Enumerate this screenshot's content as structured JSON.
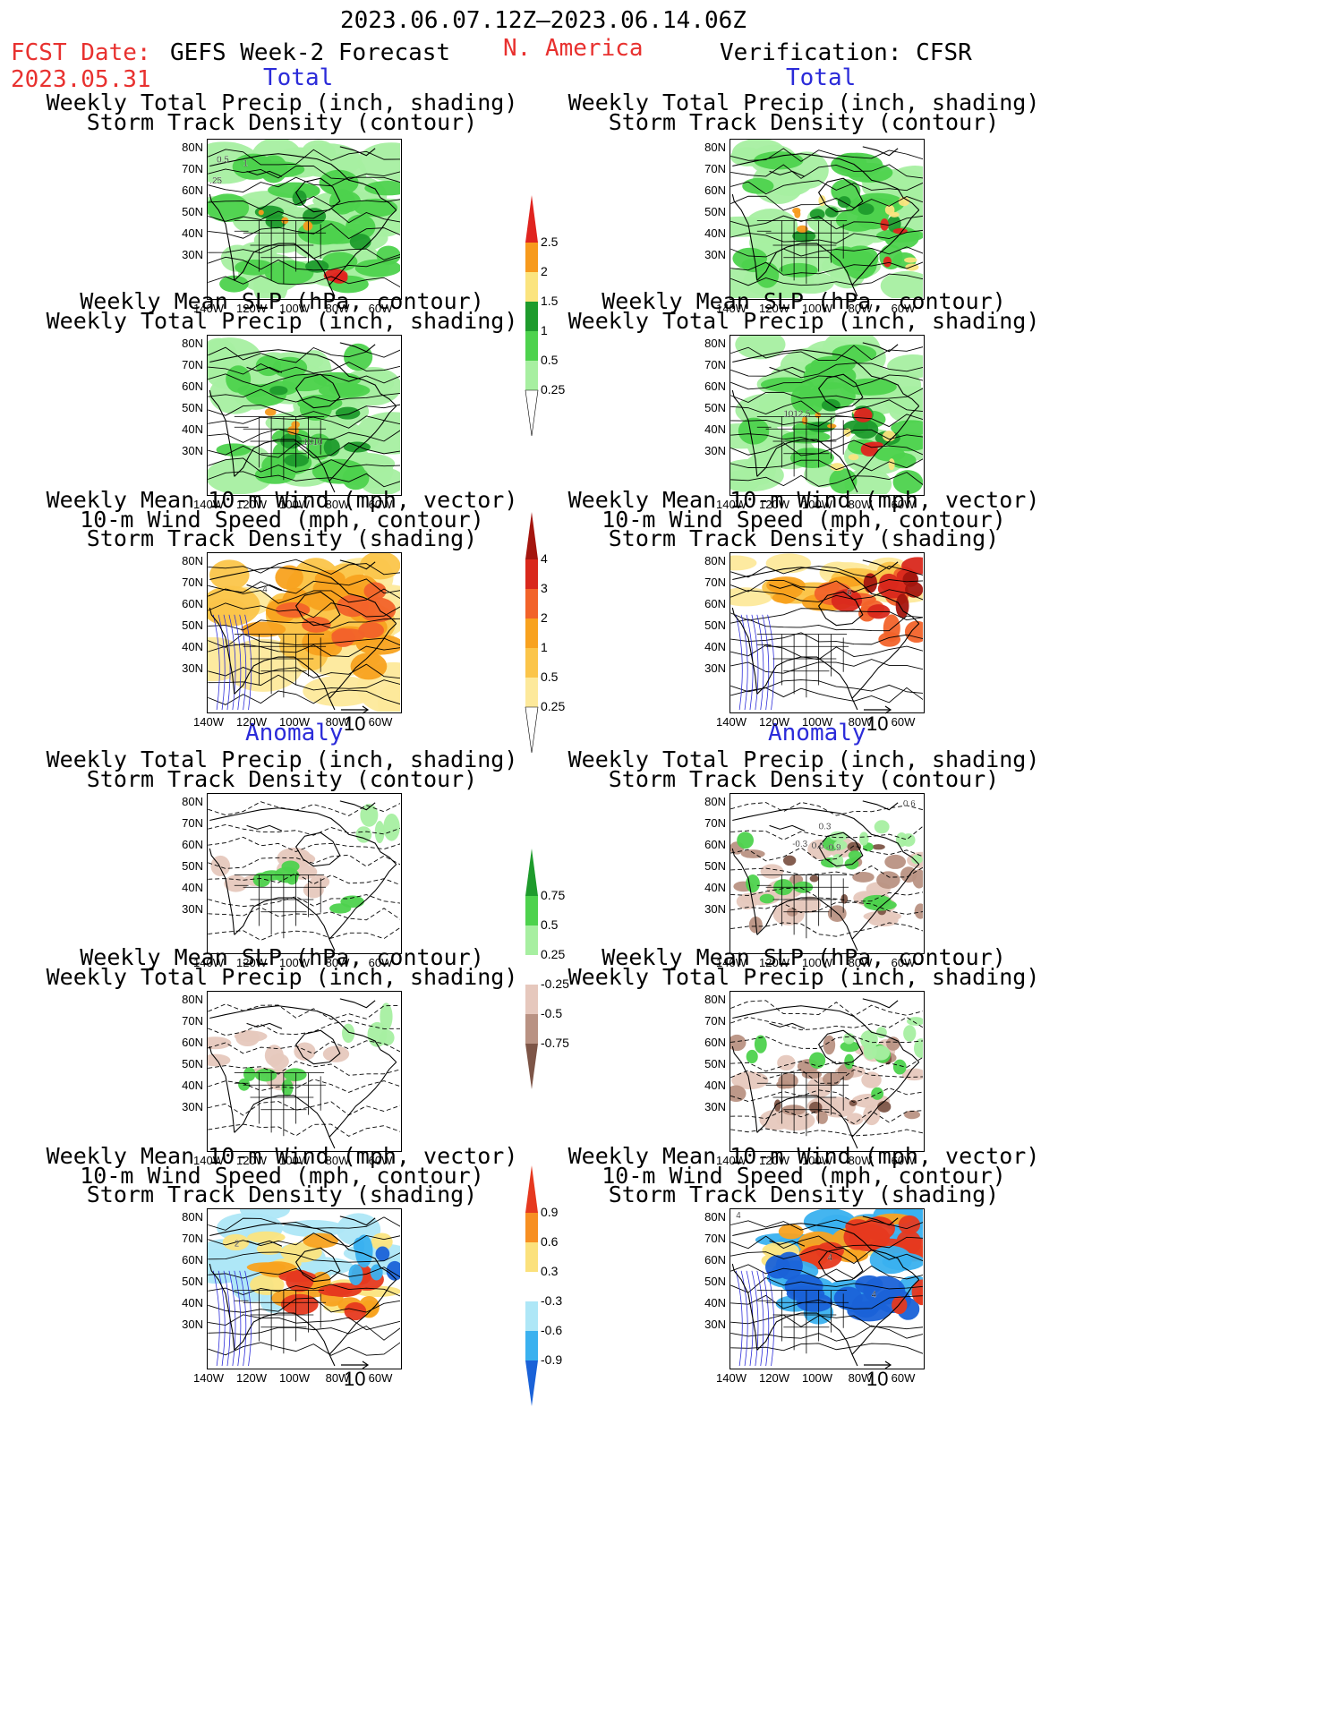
{
  "header": {
    "date_range": "2023.06.07.12Z–2023.06.14.06Z",
    "fcst_label": "FCST Date:",
    "fcst_date": "2023.05.31",
    "model": "GEFS Week-2 Forecast",
    "region": "N. America",
    "verification": "Verification: CFSR"
  },
  "sections": {
    "total": "Total",
    "anomaly": "Anomaly"
  },
  "captions": {
    "precip_track": [
      "Weekly Total Precip (inch, shading)",
      "Storm Track Density (contour)"
    ],
    "slp_precip": [
      "Weekly Mean SLP (hPa, contour)",
      "Weekly Total Precip (inch, shading)"
    ],
    "wind_track": [
      "Weekly Mean 10-m Wind (mph, vector)",
      "10-m Wind Speed (mph, contour)",
      "Storm Track Density (shading)"
    ]
  },
  "axes": {
    "lat_ticks": [
      "80N",
      "70N",
      "60N",
      "50N",
      "40N",
      "30N"
    ],
    "lon_ticks": [
      "140W",
      "120W",
      "100W",
      "80W",
      "60W"
    ]
  },
  "vector_scale": "10",
  "contour_labels": {
    "fcst_total_precip": [
      "0.5",
      "1",
      ".25"
    ],
    "fcst_total_slp": [
      "1010"
    ],
    "obs_total_slp": [
      "1012.5"
    ],
    "fcst_total_wind": [
      "4"
    ],
    "obs_total_wind": [
      "6"
    ],
    "obs_anom_precip": [
      "0.6",
      "0.3",
      "-0.3",
      "0.6",
      "-0.9"
    ],
    "fcst_anom_wind": [
      "2"
    ],
    "obs_anom_wind": [
      "4",
      "4",
      "4"
    ]
  },
  "colorbars": {
    "precip_total": {
      "labels": [
        "2.5",
        "2",
        "1.5",
        "1",
        "0.5",
        "0.25"
      ],
      "colors": [
        "#e0241f",
        "#f79a1d",
        "#fbe47e",
        "#1e9b2c",
        "#4dd24d",
        "#a7efa1",
        "#ffffff"
      ]
    },
    "track_total": {
      "labels": [
        "4",
        "3",
        "2",
        "1",
        "0.5",
        "0.25"
      ],
      "colors": [
        "#a4150e",
        "#d9281c",
        "#f2632a",
        "#f8a21f",
        "#fbc54a",
        "#fde99b",
        "#ffffff"
      ]
    },
    "precip_anom": {
      "labels": [
        "0.75",
        "0.5",
        "0.25",
        "-0.25",
        "-0.5",
        "-0.75"
      ],
      "colors": [
        "#1e9b2c",
        "#4dd24d",
        "#a7efa1",
        "#ffffff",
        "#e6c8bd",
        "#b99283",
        "#7d5547"
      ]
    },
    "track_anom": {
      "labels": [
        "0.9",
        "0.6",
        "0.3",
        "-0.3",
        "-0.6",
        "-0.9"
      ],
      "colors": [
        "#e6391f",
        "#f78f22",
        "#fbe17c",
        "#ffffff",
        "#aee7f7",
        "#3ab1ef",
        "#1a62d8"
      ]
    }
  }
}
